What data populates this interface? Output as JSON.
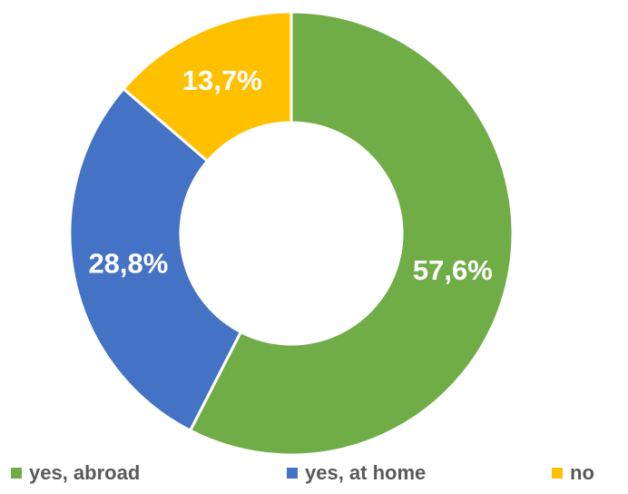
{
  "chart_data": {
    "type": "donut",
    "categories": [
      "yes, abroad",
      "yes, at home",
      "no"
    ],
    "values": [
      57.6,
      28.8,
      13.7
    ],
    "value_labels": [
      "57,6%",
      "28,8%",
      "13,7%"
    ],
    "colors": [
      "#70ad47",
      "#4472c4",
      "#ffc000"
    ],
    "legend": "bottom"
  }
}
